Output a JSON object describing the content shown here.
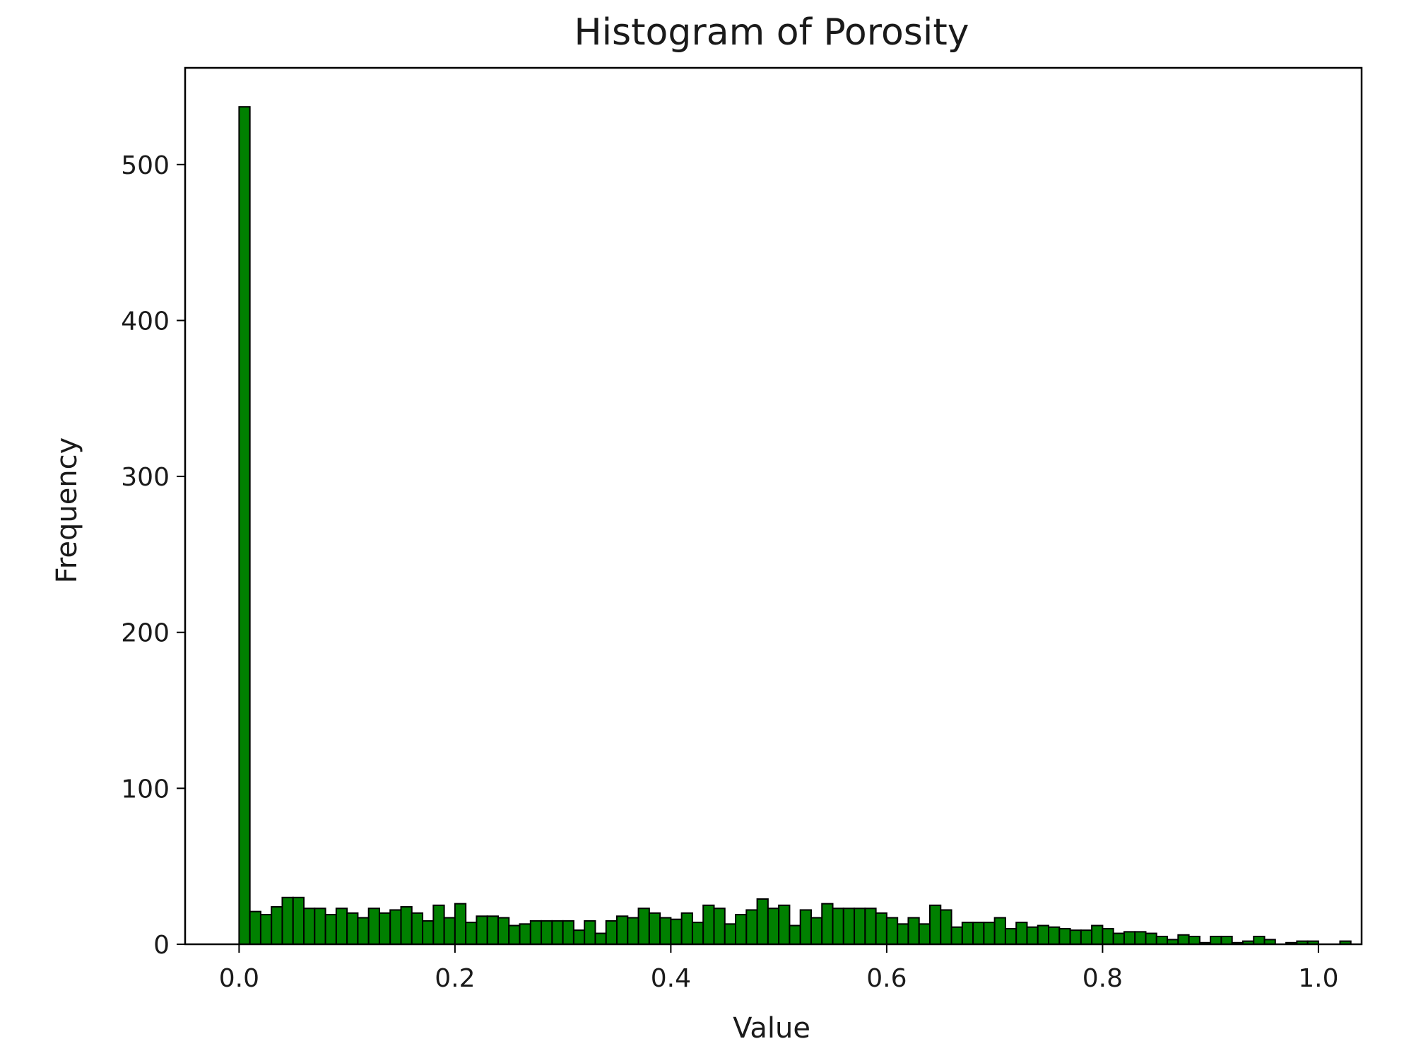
{
  "chart_data": {
    "type": "bar",
    "title": "Histogram of Porosity",
    "xlabel": "Value",
    "ylabel": "Frequency",
    "xlim": [
      -0.05,
      1.04
    ],
    "ylim": [
      0,
      562
    ],
    "xticks": [
      "0.0",
      "0.2",
      "0.4",
      "0.6",
      "0.8",
      "1.0"
    ],
    "yticks": [
      "0",
      "100",
      "200",
      "300",
      "400",
      "500"
    ],
    "bin_start": 0.0,
    "bin_width": 0.01,
    "bar_color": "#008000",
    "edge_color": "#000000",
    "grid": false,
    "values": [
      537,
      21,
      19,
      24,
      30,
      30,
      23,
      23,
      19,
      23,
      20,
      17,
      23,
      20,
      22,
      24,
      20,
      15,
      25,
      17,
      26,
      14,
      18,
      18,
      17,
      12,
      13,
      15,
      15,
      15,
      15,
      9,
      15,
      7,
      15,
      18,
      17,
      23,
      20,
      17,
      16,
      20,
      14,
      25,
      23,
      13,
      19,
      22,
      29,
      23,
      25,
      12,
      22,
      17,
      26,
      23,
      23,
      23,
      23,
      20,
      17,
      13,
      17,
      13,
      25,
      22,
      11,
      14,
      14,
      14,
      17,
      10,
      14,
      11,
      12,
      11,
      10,
      9,
      9,
      12,
      10,
      7,
      8,
      8,
      7,
      5,
      3,
      6,
      5,
      1,
      5,
      5,
      1,
      2,
      5,
      3,
      0,
      1,
      2,
      2,
      0,
      0,
      2,
      0
    ]
  }
}
